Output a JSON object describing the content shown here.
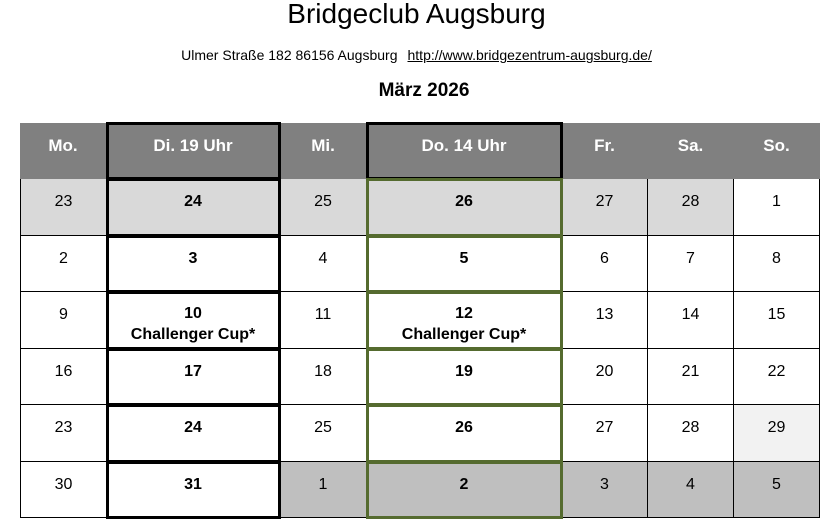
{
  "header": {
    "title": "Bridgeclub Augsburg",
    "address": "Ulmer Straße 182   86156 Augsburg",
    "url": "http://www.bridgezentrum-augsburg.de/",
    "month": "März 2026"
  },
  "colors": {
    "header_bg": "#808080",
    "prev_month_bg": "#d9d9d9",
    "next_month_bg": "#bfbfbf",
    "sunday_highlight": "#f2f2f2",
    "thursday_frame": "#556b2f",
    "tuesday_frame": "#000000"
  },
  "calendar": {
    "weekdays": [
      "Mo.",
      "Di. 19 Uhr",
      "Mi.",
      "Do. 14 Uhr",
      "Fr.",
      "Sa.",
      "So."
    ],
    "weeks": [
      [
        {
          "day": "23",
          "bg": "#d9d9d9"
        },
        {
          "day": "24",
          "bg": "#d9d9d9"
        },
        {
          "day": "25",
          "bg": "#d9d9d9"
        },
        {
          "day": "26",
          "bg": "#d9d9d9"
        },
        {
          "day": "27",
          "bg": "#d9d9d9"
        },
        {
          "day": "28",
          "bg": "#d9d9d9"
        },
        {
          "day": "1"
        }
      ],
      [
        {
          "day": "2"
        },
        {
          "day": "3"
        },
        {
          "day": "4"
        },
        {
          "day": "5"
        },
        {
          "day": "6"
        },
        {
          "day": "7"
        },
        {
          "day": "8"
        }
      ],
      [
        {
          "day": "9"
        },
        {
          "day": "10",
          "event": "Challenger Cup*"
        },
        {
          "day": "11"
        },
        {
          "day": "12",
          "event": "Challenger Cup*"
        },
        {
          "day": "13"
        },
        {
          "day": "14"
        },
        {
          "day": "15"
        }
      ],
      [
        {
          "day": "16"
        },
        {
          "day": "17"
        },
        {
          "day": "18"
        },
        {
          "day": "19"
        },
        {
          "day": "20"
        },
        {
          "day": "21"
        },
        {
          "day": "22"
        }
      ],
      [
        {
          "day": "23"
        },
        {
          "day": "24"
        },
        {
          "day": "25"
        },
        {
          "day": "26"
        },
        {
          "day": "27"
        },
        {
          "day": "28"
        },
        {
          "day": "29",
          "bg": "#f2f2f2"
        }
      ],
      [
        {
          "day": "30"
        },
        {
          "day": "31"
        },
        {
          "day": "1",
          "bg": "#bfbfbf"
        },
        {
          "day": "2",
          "bg": "#bfbfbf"
        },
        {
          "day": "3",
          "bg": "#bfbfbf"
        },
        {
          "day": "4",
          "bg": "#bfbfbf"
        },
        {
          "day": "5",
          "bg": "#bfbfbf"
        }
      ]
    ]
  }
}
